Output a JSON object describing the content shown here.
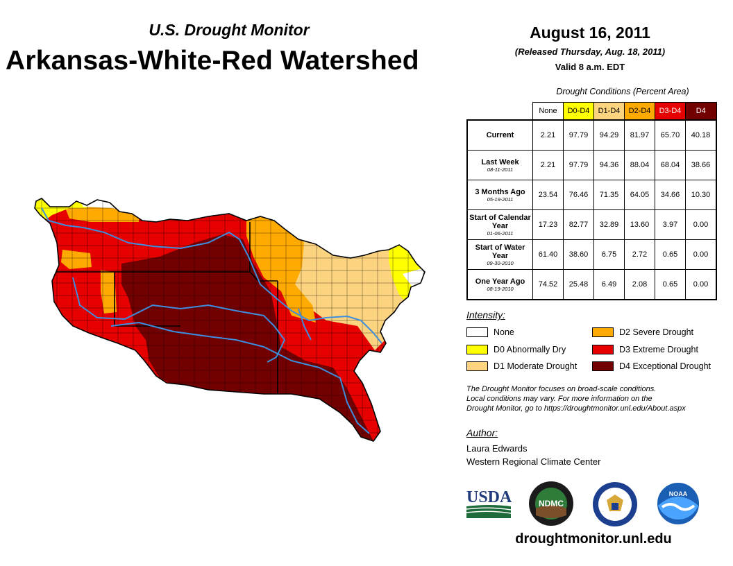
{
  "header": {
    "subtitle": "U.S. Drought Monitor",
    "title": "Arkansas-White-Red Watershed",
    "date": "August 16, 2011",
    "released": "(Released Thursday, Aug. 18, 2011)",
    "valid": "Valid 8 a.m. EDT"
  },
  "conditions": {
    "caption": "Drought Conditions (Percent Area)",
    "columns": [
      "None",
      "D0-D4",
      "D1-D4",
      "D2-D4",
      "D3-D4",
      "D4"
    ],
    "column_colors": [
      "#ffffff",
      "#ffff00",
      "#fcd37f",
      "#ffaa00",
      "#e60000",
      "#730000"
    ],
    "rows": [
      {
        "label": "Current",
        "date": "",
        "values": [
          "2.21",
          "97.79",
          "94.29",
          "81.97",
          "65.70",
          "40.18"
        ]
      },
      {
        "label": "Last Week",
        "date": "08-11-2011",
        "values": [
          "2.21",
          "97.79",
          "94.36",
          "88.04",
          "68.04",
          "38.66"
        ]
      },
      {
        "label": "3 Months Ago",
        "date": "05-19-2011",
        "values": [
          "23.54",
          "76.46",
          "71.35",
          "64.05",
          "34.66",
          "10.30"
        ]
      },
      {
        "label": "Start of Calendar Year",
        "date": "01-06-2011",
        "values": [
          "17.23",
          "82.77",
          "32.89",
          "13.60",
          "3.97",
          "0.00"
        ]
      },
      {
        "label": "Start of Water Year",
        "date": "09-30-2010",
        "values": [
          "61.40",
          "38.60",
          "6.75",
          "2.72",
          "0.65",
          "0.00"
        ]
      },
      {
        "label": "One Year Ago",
        "date": "08-19-2010",
        "values": [
          "74.52",
          "25.48",
          "6.49",
          "2.08",
          "0.65",
          "0.00"
        ]
      }
    ]
  },
  "intensity": {
    "title": "Intensity:",
    "items": [
      {
        "label": "None",
        "color": "#ffffff"
      },
      {
        "label": "D0 Abnormally Dry",
        "color": "#ffff00"
      },
      {
        "label": "D1 Moderate Drought",
        "color": "#fcd37f"
      },
      {
        "label": "D2 Severe Drought",
        "color": "#ffaa00"
      },
      {
        "label": "D3 Extreme Drought",
        "color": "#e60000"
      },
      {
        "label": "D4 Exceptional Drought",
        "color": "#730000"
      }
    ]
  },
  "note": {
    "line1": "The Drought Monitor focuses on broad-scale conditions.",
    "line2": "Local conditions may vary. For more information on the",
    "line3": "Drought Monitor, go to https://droughtmonitor.unl.edu/About.aspx"
  },
  "author": {
    "title": "Author:",
    "name": "Laura Edwards",
    "org": "Western Regional Climate Center"
  },
  "logos": {
    "usda": "USDA",
    "ndmc": "NDMC",
    "noaa": "NOAA"
  },
  "footer": {
    "url": "droughtmonitor.unl.edu"
  }
}
